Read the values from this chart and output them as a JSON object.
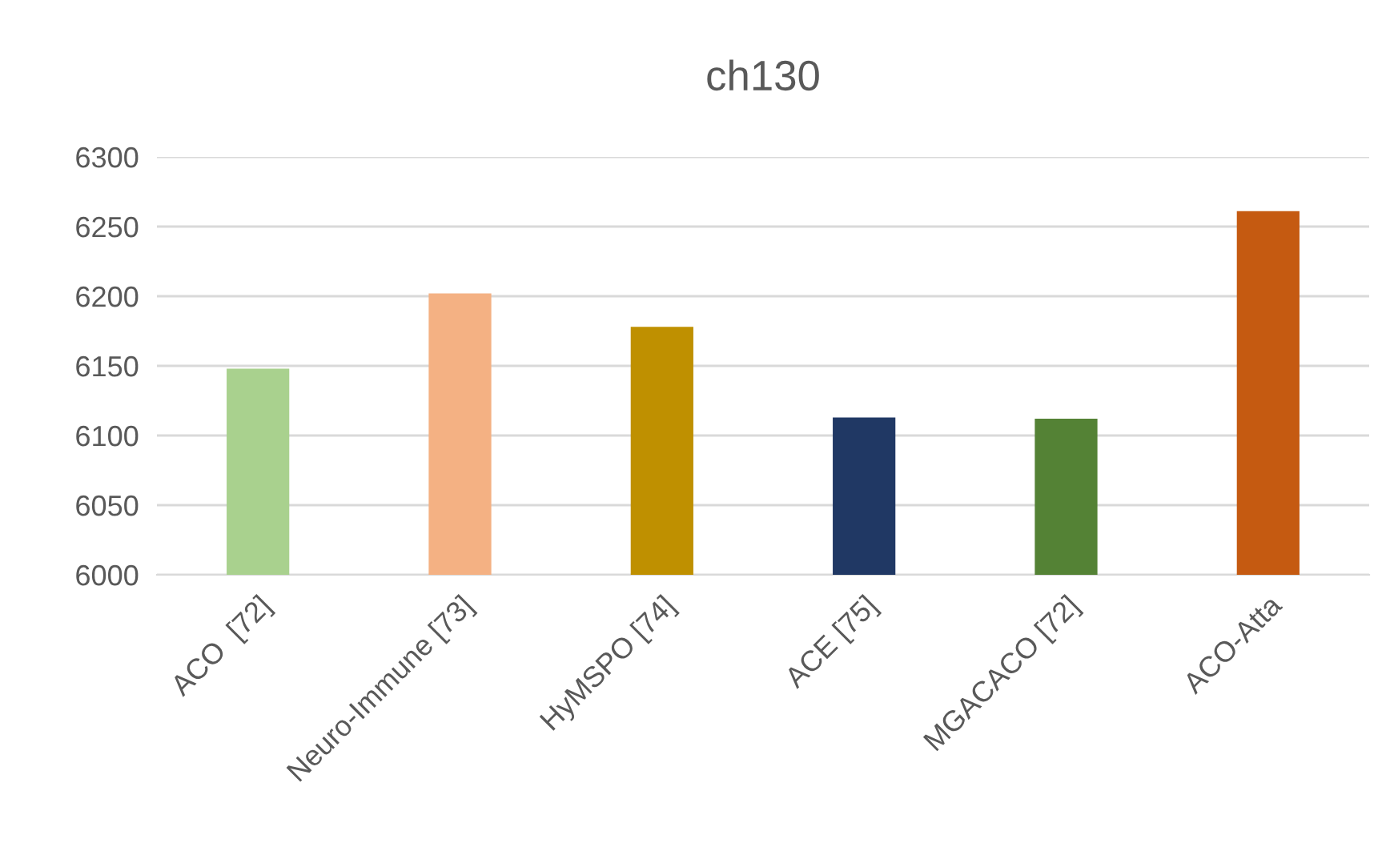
{
  "chart_data": {
    "type": "bar",
    "title": "ch130",
    "categories": [
      "ACO  [72]",
      "Neuro-Immune [73]",
      "HyMSPO [74]",
      "ACE [75]",
      "MGACACO [72]",
      "ACO-Atta"
    ],
    "values": [
      6148,
      6202,
      6178,
      6113,
      6112,
      6261
    ],
    "colors": [
      "#a9d18e",
      "#f4b183",
      "#bf9000",
      "#203864",
      "#548235",
      "#c55a11"
    ],
    "ylim": [
      6000,
      6300
    ],
    "yticks": [
      6000,
      6050,
      6100,
      6150,
      6200,
      6250,
      6300
    ],
    "grid": "y"
  }
}
